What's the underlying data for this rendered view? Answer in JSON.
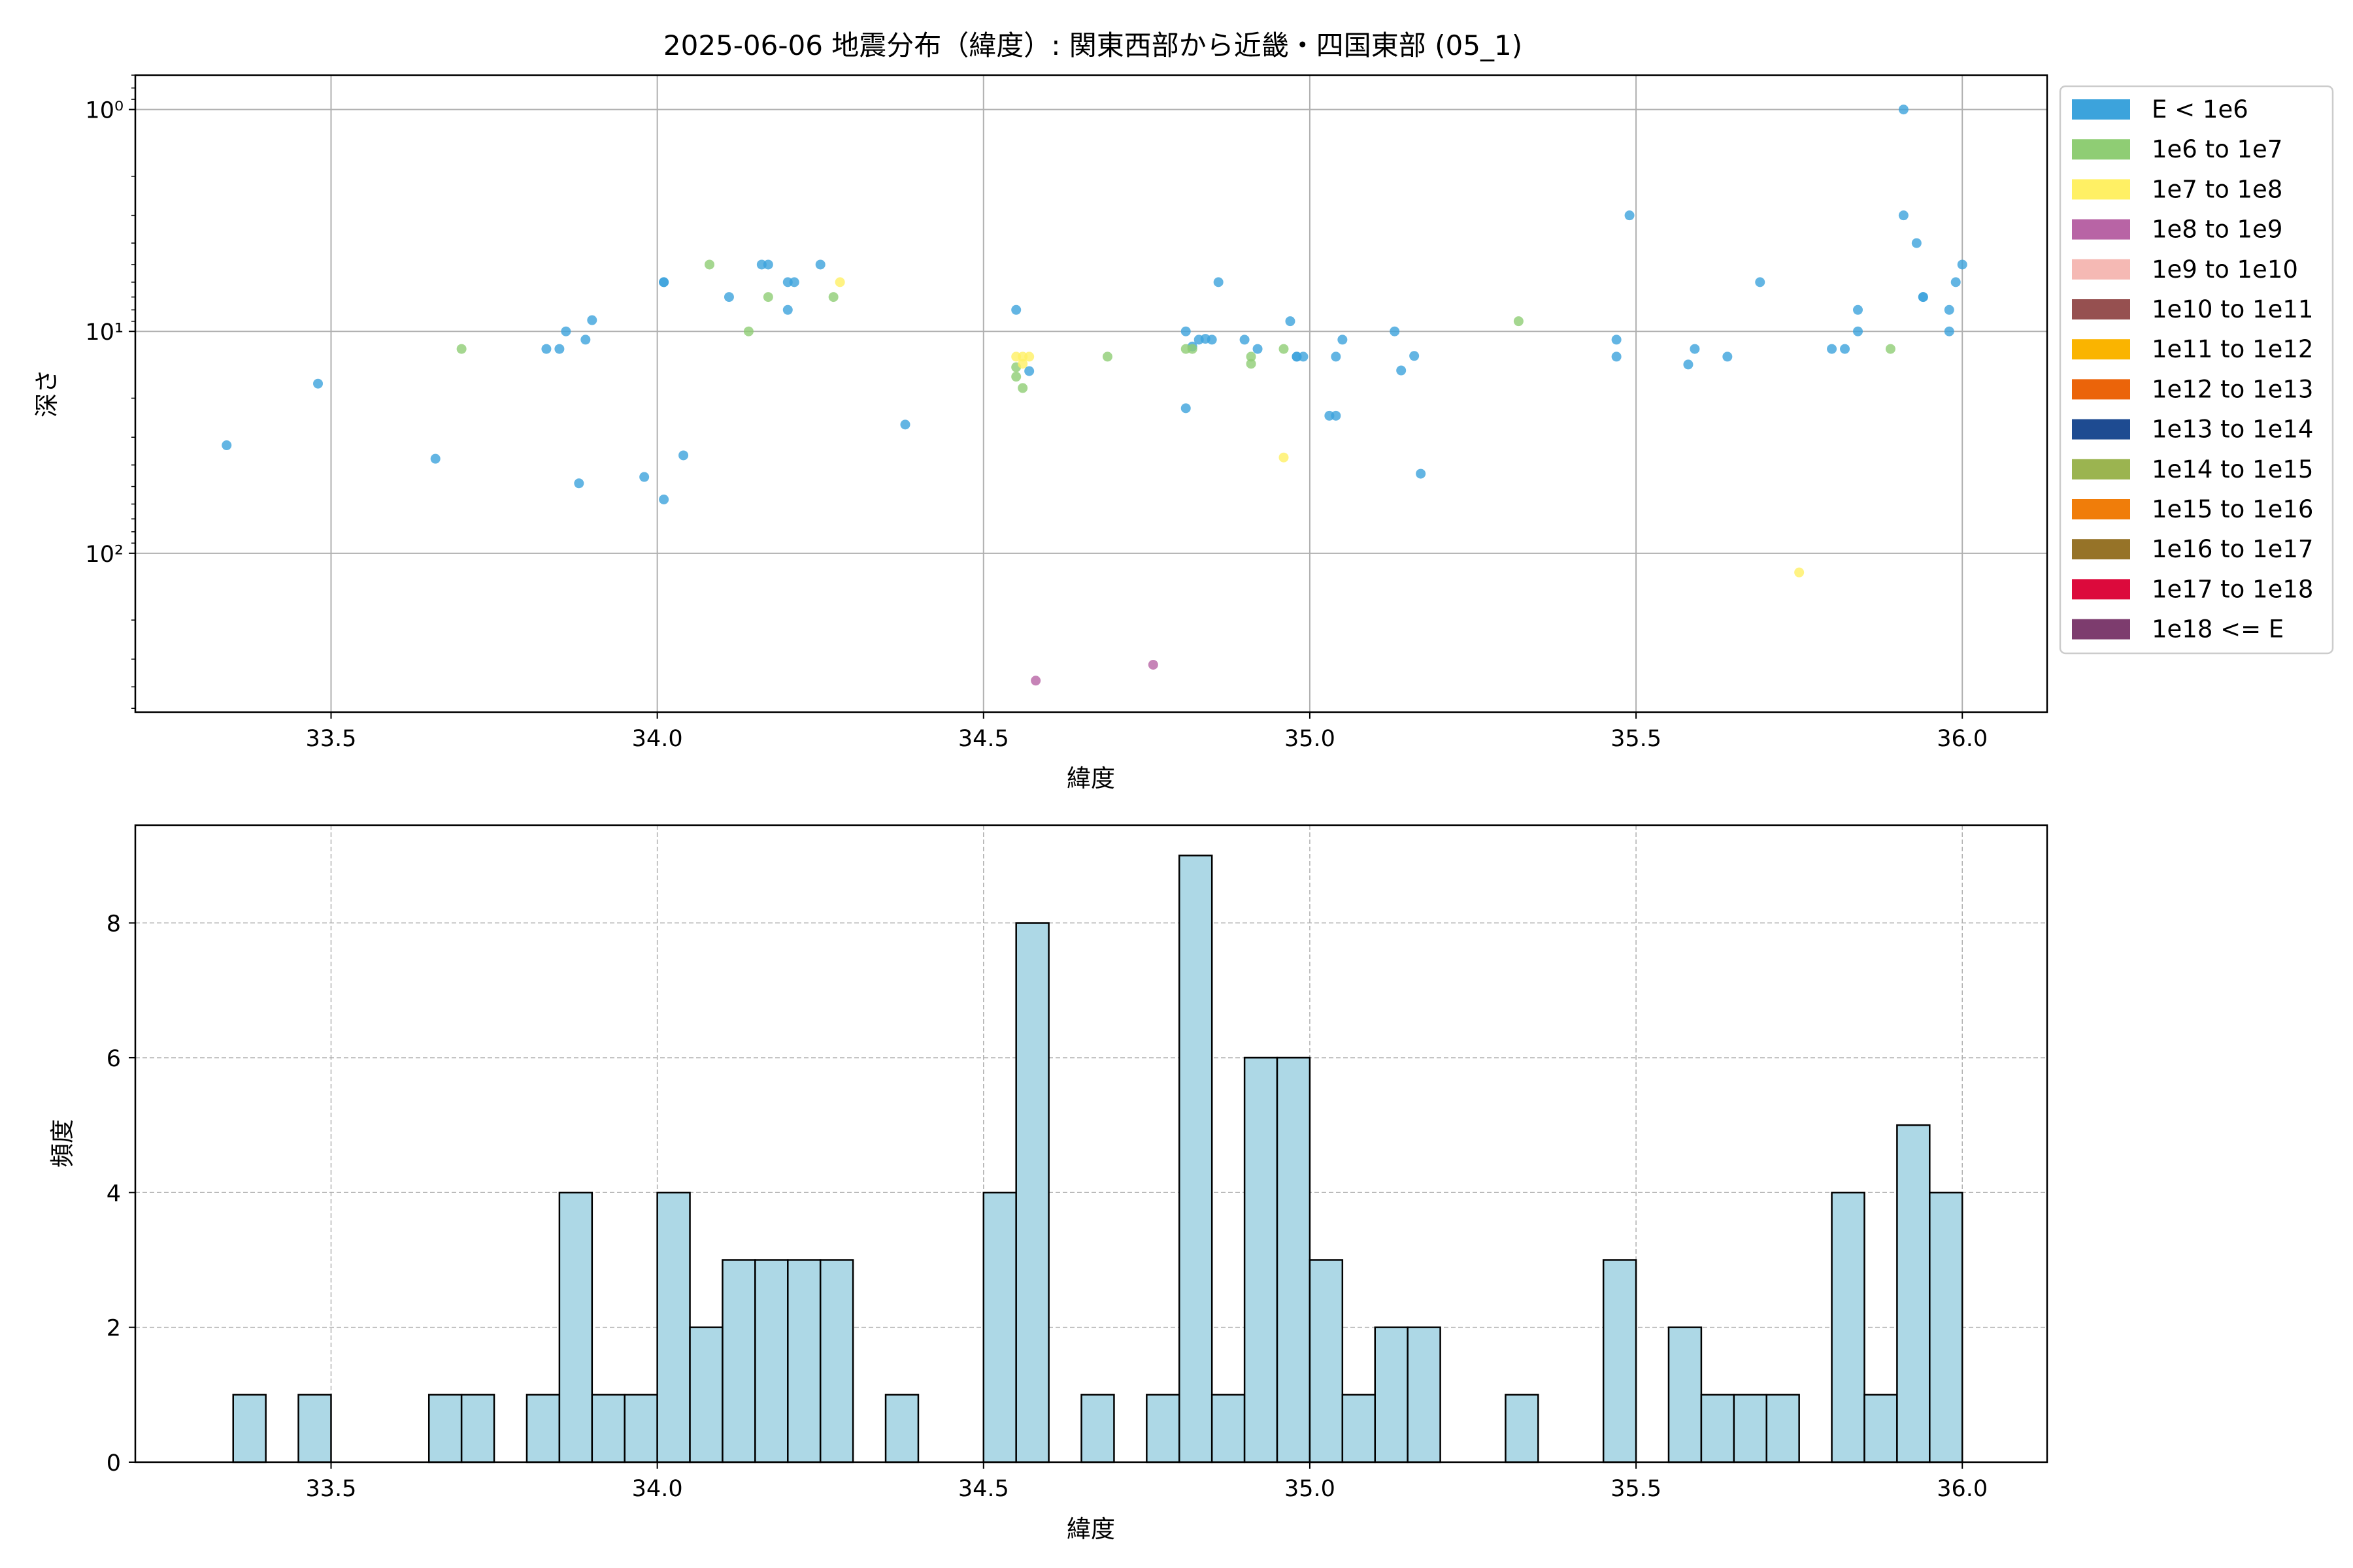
{
  "title": "2025-06-06 地震分布（緯度）: 関東西部から近畿・四国東部 (05_1)",
  "legend_title": "",
  "chart_data": [
    {
      "type": "scatter",
      "xlabel": "緯度",
      "ylabel": "深さ",
      "xlim": [
        33.2,
        36.13
      ],
      "ylim": [
        520,
        0.7
      ],
      "yscale": "log",
      "y_inverted": true,
      "grid": true,
      "legend_position": "outside-right",
      "xticks": [
        "33.5",
        "34.0",
        "34.5",
        "35.0",
        "35.5",
        "36.0"
      ],
      "yticks": [
        {
          "value": 1,
          "label": "10⁰"
        },
        {
          "value": 10,
          "label": "10¹"
        },
        {
          "value": 100,
          "label": "10²"
        }
      ],
      "legend": [
        {
          "label": "E < 1e6",
          "color": "#3ca3dc"
        },
        {
          "label": "1e6 to 1e7",
          "color": "#8fcd74"
        },
        {
          "label": "1e7 to 1e8",
          "color": "#fff064"
        },
        {
          "label": "1e8 to 1e9",
          "color": "#b864a5"
        },
        {
          "label": "1e9 to 1e10",
          "color": "#f5b9b4"
        },
        {
          "label": "1e10 to 1e11",
          "color": "#965050"
        },
        {
          "label": "1e11 to 1e12",
          "color": "#fab400"
        },
        {
          "label": "1e12 to 1e13",
          "color": "#eb640a"
        },
        {
          "label": "1e13 to 1e14",
          "color": "#1e4b91"
        },
        {
          "label": "1e14 to 1e15",
          "color": "#9bb450"
        },
        {
          "label": "1e15 to 1e16",
          "color": "#f07d0a"
        },
        {
          "label": "1e16 to 1e17",
          "color": "#967328"
        },
        {
          "label": "1e17 to 1e18",
          "color": "#dc0a3c"
        },
        {
          "label": "1e18 <= E",
          "color": "#7d3c6e"
        }
      ],
      "series": [
        {
          "name": "E < 1e6",
          "color": "#3ca3dc",
          "points": [
            [
              33.34,
              32.6
            ],
            [
              33.48,
              17.2
            ],
            [
              33.66,
              37.5
            ],
            [
              33.83,
              12.0
            ],
            [
              33.85,
              12.0
            ],
            [
              33.86,
              10.0
            ],
            [
              33.88,
              48.4
            ],
            [
              33.89,
              10.9
            ],
            [
              33.9,
              8.9
            ],
            [
              33.98,
              45.3
            ],
            [
              34.01,
              6.0
            ],
            [
              34.01,
              6.0
            ],
            [
              34.01,
              57.2
            ],
            [
              34.04,
              36.2
            ],
            [
              34.11,
              7.0
            ],
            [
              34.16,
              5.0
            ],
            [
              34.17,
              5.0
            ],
            [
              34.2,
              6.0
            ],
            [
              34.2,
              8.0
            ],
            [
              34.21,
              6.0
            ],
            [
              34.25,
              5.0
            ],
            [
              34.38,
              26.3
            ],
            [
              34.55,
              8.0
            ],
            [
              34.57,
              15.1
            ],
            [
              34.81,
              10.0
            ],
            [
              34.81,
              22.2
            ],
            [
              34.82,
              11.7
            ],
            [
              34.83,
              10.9
            ],
            [
              34.84,
              10.8
            ],
            [
              34.85,
              10.9
            ],
            [
              34.86,
              6.0
            ],
            [
              34.9,
              10.9
            ],
            [
              34.92,
              12.0
            ],
            [
              34.97,
              9.0
            ],
            [
              34.98,
              13.0
            ],
            [
              34.98,
              13.0
            ],
            [
              34.99,
              13.0
            ],
            [
              35.03,
              24.0
            ],
            [
              35.04,
              24.0
            ],
            [
              35.04,
              13.0
            ],
            [
              35.05,
              10.9
            ],
            [
              35.13,
              10.0
            ],
            [
              35.14,
              15.0
            ],
            [
              35.16,
              12.9
            ],
            [
              35.17,
              43.8
            ],
            [
              35.47,
              10.9
            ],
            [
              35.47,
              13.0
            ],
            [
              35.49,
              3.0
            ],
            [
              35.58,
              14.1
            ],
            [
              35.59,
              12.0
            ],
            [
              35.64,
              13.0
            ],
            [
              35.69,
              6.0
            ],
            [
              35.8,
              12.0
            ],
            [
              35.82,
              12.0
            ],
            [
              35.84,
              10.0
            ],
            [
              35.84,
              8.0
            ],
            [
              35.91,
              1.0
            ],
            [
              35.91,
              3.0
            ],
            [
              35.93,
              4.0
            ],
            [
              35.94,
              7.0
            ],
            [
              35.94,
              7.0
            ],
            [
              35.98,
              8.0
            ],
            [
              35.98,
              10.0
            ],
            [
              35.99,
              6.0
            ],
            [
              36.0,
              5.0
            ]
          ]
        },
        {
          "name": "1e6 to 1e7",
          "color": "#8fcd74",
          "points": [
            [
              33.7,
              12.0
            ],
            [
              34.08,
              5.0
            ],
            [
              34.14,
              10.0
            ],
            [
              34.17,
              7.0
            ],
            [
              34.27,
              7.0
            ],
            [
              34.55,
              14.5
            ],
            [
              34.55,
              16.0
            ],
            [
              34.56,
              18.0
            ],
            [
              34.69,
              13.0
            ],
            [
              34.81,
              12.0
            ],
            [
              34.82,
              12.0
            ],
            [
              34.91,
              13.0
            ],
            [
              34.91,
              14.0
            ],
            [
              34.96,
              12.0
            ],
            [
              35.32,
              9.0
            ],
            [
              35.89,
              12.0
            ]
          ]
        },
        {
          "name": "1e7 to 1e8",
          "color": "#fff064",
          "points": [
            [
              34.28,
              6.0
            ],
            [
              34.55,
              13.0
            ],
            [
              34.56,
              13.0
            ],
            [
              34.56,
              14.0
            ],
            [
              34.57,
              13.0
            ],
            [
              34.96,
              37.0
            ],
            [
              35.75,
              122.0
            ]
          ]
        },
        {
          "name": "1e8 to 1e9",
          "color": "#b864a5",
          "points": [
            [
              34.58,
              375.0
            ],
            [
              34.76,
              318.0
            ]
          ]
        }
      ]
    },
    {
      "type": "bar",
      "xlabel": "緯度",
      "ylabel": "頻度",
      "xlim": [
        33.2,
        36.13
      ],
      "ylim": [
        0,
        9.45
      ],
      "grid": true,
      "bin_width": 0.05,
      "xticks": [
        "33.5",
        "34.0",
        "34.5",
        "35.0",
        "35.5",
        "36.0"
      ],
      "yticks": [
        "0",
        "2",
        "4",
        "6",
        "8"
      ],
      "color": "#add8e6",
      "bins": [
        [
          33.35,
          33.4,
          1
        ],
        [
          33.45,
          33.5,
          1
        ],
        [
          33.65,
          33.7,
          1
        ],
        [
          33.7,
          33.75,
          1
        ],
        [
          33.8,
          33.85,
          1
        ],
        [
          33.85,
          33.9,
          4
        ],
        [
          33.9,
          33.95,
          1
        ],
        [
          33.95,
          34.0,
          1
        ],
        [
          34.0,
          34.05,
          4
        ],
        [
          34.05,
          34.1,
          2
        ],
        [
          34.1,
          34.15,
          3
        ],
        [
          34.15,
          34.2,
          3
        ],
        [
          34.2,
          34.25,
          3
        ],
        [
          34.25,
          34.3,
          3
        ],
        [
          34.35,
          34.4,
          1
        ],
        [
          34.5,
          34.55,
          4
        ],
        [
          34.55,
          34.6,
          8
        ],
        [
          34.65,
          34.7,
          1
        ],
        [
          34.75,
          34.8,
          1
        ],
        [
          34.8,
          34.85,
          9
        ],
        [
          34.85,
          34.9,
          1
        ],
        [
          34.9,
          34.95,
          6
        ],
        [
          34.95,
          35.0,
          6
        ],
        [
          35.0,
          35.05,
          3
        ],
        [
          35.05,
          35.1,
          1
        ],
        [
          35.1,
          35.15,
          2
        ],
        [
          35.15,
          35.2,
          2
        ],
        [
          35.3,
          35.35,
          1
        ],
        [
          35.45,
          35.5,
          3
        ],
        [
          35.55,
          35.6,
          2
        ],
        [
          35.6,
          35.65,
          1
        ],
        [
          35.65,
          35.7,
          1
        ],
        [
          35.7,
          35.75,
          1
        ],
        [
          35.8,
          35.85,
          4
        ],
        [
          35.85,
          35.9,
          1
        ],
        [
          35.9,
          35.95,
          5
        ],
        [
          35.95,
          36.0,
          4
        ]
      ]
    }
  ]
}
